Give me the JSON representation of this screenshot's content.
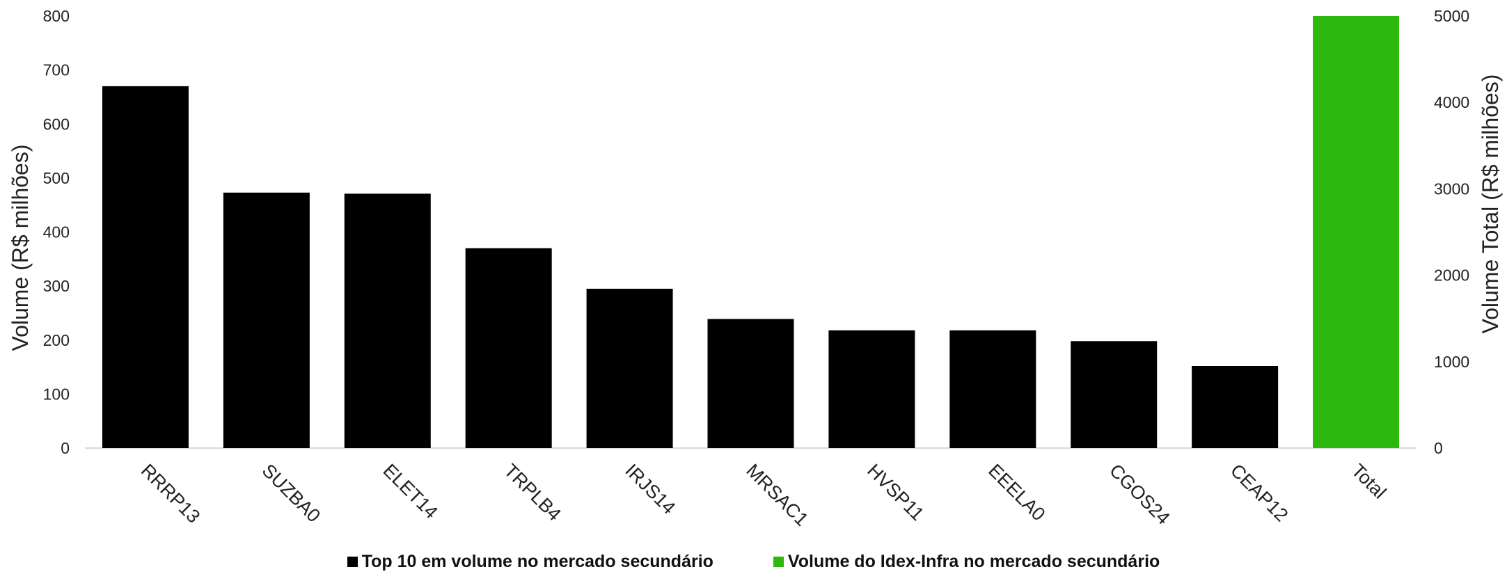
{
  "chart_data": {
    "type": "bar",
    "categories": [
      "RRRP13",
      "SUZBA0",
      "ELET14",
      "TRPLB4",
      "IRJS14",
      "MRSAC1",
      "HVSP11",
      "EEELA0",
      "CGOS24",
      "CEAP12",
      "Total"
    ],
    "series": [
      {
        "name": "Top 10 em volume no mercado secundário",
        "color": "#000000",
        "axis": "left",
        "values": [
          670,
          473,
          471,
          370,
          295,
          239,
          218,
          218,
          198,
          152,
          null
        ]
      },
      {
        "name": "Volume do Idex-Infra no mercado secundário",
        "color": "#2db80d",
        "axis": "right",
        "values": [
          null,
          null,
          null,
          null,
          null,
          null,
          null,
          null,
          null,
          null,
          5000
        ]
      }
    ],
    "ylabel": "Volume (R$ milhões)",
    "y2label": "Volume Total (R$ milhões)",
    "ylim": [
      0,
      800
    ],
    "y2lim": [
      0,
      5000
    ],
    "yticks": [
      "0",
      "100",
      "200",
      "300",
      "400",
      "500",
      "600",
      "700",
      "800"
    ],
    "y2ticks": [
      "0",
      "1000",
      "2000",
      "3000",
      "4000",
      "5000"
    ],
    "grid": false,
    "legend_position": "bottom"
  }
}
